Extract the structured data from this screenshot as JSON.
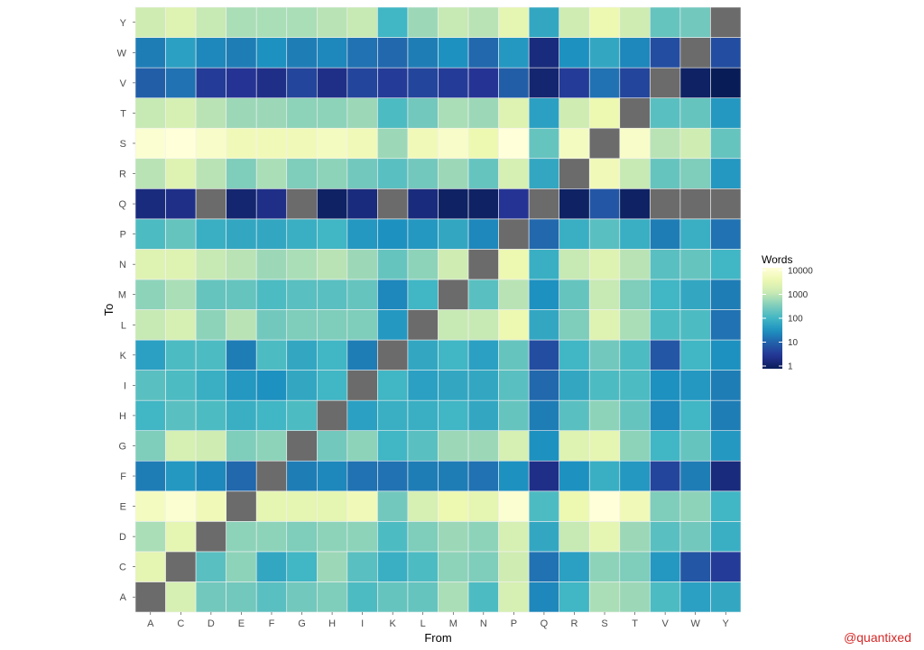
{
  "chart_data": {
    "type": "heatmap",
    "xlabel": "From",
    "ylabel": "To",
    "x_categories": [
      "A",
      "C",
      "D",
      "E",
      "F",
      "G",
      "H",
      "I",
      "K",
      "L",
      "M",
      "N",
      "P",
      "Q",
      "R",
      "S",
      "T",
      "V",
      "W",
      "Y"
    ],
    "y_categories": [
      "A",
      "C",
      "D",
      "E",
      "F",
      "G",
      "H",
      "I",
      "K",
      "L",
      "M",
      "N",
      "P",
      "Q",
      "R",
      "S",
      "T",
      "V",
      "W",
      "Y"
    ],
    "legend": {
      "title": "Words",
      "scale": "log10",
      "ticks": [
        1,
        10,
        100,
        1000,
        10000
      ],
      "tick_labels": [
        "1",
        "10",
        "100",
        "1000",
        "10000"
      ],
      "placement": "right"
    },
    "color_range": [
      "#081d58",
      "#ffffd9"
    ],
    "na_color": "#6b6b6b",
    "na_cells": "diagonal and missing pairs",
    "values_log10": [
      [
        null,
        3.2,
        2.4,
        2.4,
        2.2,
        2.4,
        2.5,
        2.1,
        2.3,
        2.3,
        2.8,
        2.1,
        3.2,
        1.4,
        2.0,
        2.8,
        2.7,
        2.1,
        1.7,
        1.8
      ],
      [
        3.4,
        null,
        2.2,
        2.6,
        1.8,
        2.0,
        2.7,
        2.2,
        1.9,
        2.1,
        2.6,
        2.5,
        3.1,
        1.2,
        1.7,
        2.6,
        2.5,
        1.6,
        0.9,
        0.6
      ],
      [
        2.8,
        3.4,
        null,
        2.6,
        2.6,
        2.5,
        2.6,
        2.6,
        2.1,
        2.5,
        2.7,
        2.6,
        3.2,
        1.8,
        3.0,
        3.4,
        2.7,
        2.2,
        2.4,
        1.9
      ],
      [
        3.7,
        3.9,
        3.6,
        null,
        3.4,
        3.4,
        3.4,
        3.6,
        2.4,
        3.2,
        3.5,
        3.4,
        3.9,
        2.1,
        3.5,
        4.0,
        3.6,
        2.5,
        2.6,
        2.0
      ],
      [
        1.3,
        1.6,
        1.4,
        1.1,
        null,
        1.3,
        1.4,
        1.2,
        1.2,
        1.3,
        1.3,
        1.2,
        1.5,
        0.4,
        1.5,
        1.9,
        1.6,
        0.7,
        1.3,
        0.3
      ],
      [
        2.5,
        3.2,
        3.1,
        2.5,
        2.6,
        null,
        2.4,
        2.6,
        2.0,
        2.2,
        2.7,
        2.7,
        3.2,
        1.5,
        3.3,
        3.4,
        2.6,
        2.0,
        2.3,
        1.6
      ],
      [
        2.0,
        2.2,
        2.1,
        1.9,
        2.0,
        2.1,
        null,
        1.7,
        1.9,
        1.9,
        2.0,
        1.8,
        2.3,
        1.3,
        2.2,
        2.6,
        2.3,
        1.4,
        2.0,
        1.3
      ],
      [
        2.2,
        2.1,
        1.9,
        1.6,
        1.5,
        1.8,
        2.0,
        null,
        2.0,
        1.7,
        1.8,
        1.8,
        2.2,
        1.1,
        1.8,
        2.1,
        2.1,
        1.5,
        1.6,
        1.3
      ],
      [
        1.7,
        2.1,
        2.1,
        1.3,
        2.1,
        1.8,
        2.0,
        1.3,
        null,
        1.8,
        2.0,
        1.7,
        2.3,
        0.8,
        2.0,
        2.4,
        2.1,
        0.9,
        2.0,
        1.5
      ],
      [
        3.0,
        3.2,
        2.6,
        2.9,
        2.4,
        2.5,
        2.5,
        2.5,
        1.6,
        null,
        3.0,
        3.0,
        3.5,
        1.8,
        2.5,
        3.3,
        2.8,
        2.1,
        2.1,
        1.2
      ],
      [
        2.6,
        2.8,
        2.3,
        2.3,
        2.1,
        2.2,
        2.2,
        2.3,
        1.4,
        2.0,
        null,
        2.2,
        2.9,
        1.5,
        2.3,
        3.0,
        2.5,
        2.0,
        1.8,
        1.3
      ],
      [
        3.3,
        3.3,
        3.0,
        2.9,
        2.7,
        2.8,
        2.9,
        2.7,
        2.3,
        2.6,
        3.1,
        null,
        3.5,
        1.9,
        3.0,
        3.3,
        2.9,
        2.2,
        2.3,
        2.0
      ],
      [
        2.1,
        2.3,
        1.9,
        1.8,
        1.8,
        1.9,
        2.0,
        1.6,
        1.5,
        1.6,
        1.8,
        1.4,
        null,
        1.1,
        1.9,
        2.2,
        1.9,
        1.3,
        1.9,
        1.2
      ],
      [
        0.3,
        0.4,
        null,
        0.2,
        0.4,
        null,
        0.1,
        0.3,
        null,
        0.3,
        0.1,
        0.1,
        0.5,
        null,
        0.1,
        0.9,
        0.1,
        null,
        null,
        null
      ],
      [
        2.9,
        3.3,
        2.9,
        2.5,
        2.8,
        2.5,
        2.6,
        2.4,
        2.2,
        2.4,
        2.7,
        2.3,
        3.2,
        1.8,
        null,
        3.6,
        3.0,
        2.3,
        2.5,
        1.6
      ],
      [
        3.9,
        4.2,
        3.8,
        3.6,
        3.6,
        3.6,
        3.7,
        3.6,
        2.7,
        3.6,
        3.8,
        3.5,
        4.1,
        2.3,
        3.7,
        null,
        3.8,
        2.9,
        3.1,
        2.3
      ],
      [
        3.0,
        3.2,
        2.9,
        2.7,
        2.7,
        2.6,
        2.6,
        2.7,
        2.1,
        2.4,
        2.8,
        2.7,
        3.3,
        1.7,
        3.1,
        3.5,
        null,
        2.2,
        2.3,
        1.6
      ],
      [
        1.0,
        1.2,
        0.6,
        0.5,
        0.4,
        0.7,
        0.4,
        0.7,
        0.6,
        0.7,
        0.6,
        0.5,
        1.0,
        0.2,
        0.6,
        1.2,
        0.7,
        null,
        0.1,
        0.0
      ],
      [
        1.3,
        1.7,
        1.4,
        1.3,
        1.5,
        1.3,
        1.4,
        1.2,
        1.1,
        1.3,
        1.5,
        1.1,
        1.6,
        0.3,
        1.5,
        1.8,
        1.4,
        0.8,
        null,
        0.8
      ],
      [
        3.1,
        3.3,
        3.0,
        2.8,
        2.8,
        2.8,
        2.9,
        3.0,
        2.0,
        2.7,
        3.0,
        2.9,
        3.4,
        1.8,
        3.1,
        3.5,
        3.1,
        2.3,
        2.4,
        null
      ]
    ]
  },
  "credit": "@quantixed"
}
